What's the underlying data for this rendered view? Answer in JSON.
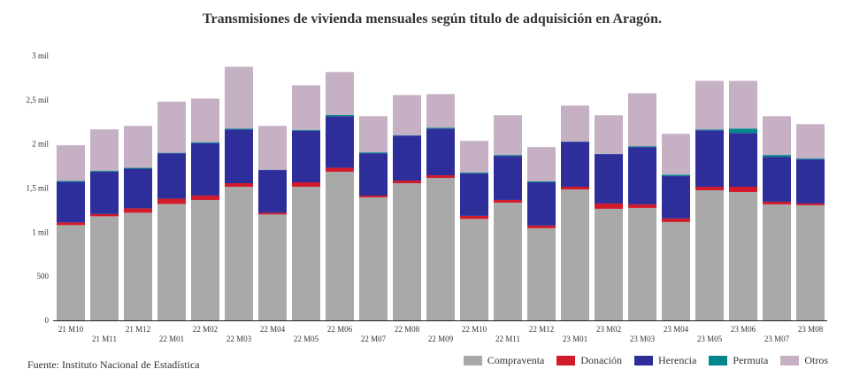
{
  "chart_data": {
    "type": "bar",
    "stacked": true,
    "title": "Transmisiones de vivienda mensuales según titulo de adquisición en Aragón.",
    "source": "Fuente: Instituto Nacional de Estadística",
    "xlabel": "",
    "ylabel": "",
    "ylim": [
      0,
      3000
    ],
    "yticks": [
      {
        "value": 0,
        "label": "0"
      },
      {
        "value": 500,
        "label": "500"
      },
      {
        "value": 1000,
        "label": "1 mil"
      },
      {
        "value": 1500,
        "label": "1,5 mil"
      },
      {
        "value": 2000,
        "label": "2 mil"
      },
      {
        "value": 2500,
        "label": "2,5 mil"
      },
      {
        "value": 3000,
        "label": "3 mil"
      }
    ],
    "grid": false,
    "legend_position": "bottom-right",
    "categories": [
      "21 M10",
      "21 M11",
      "21 M12",
      "22 M01",
      "22 M02",
      "22 M03",
      "22 M04",
      "22 M05",
      "22 M06",
      "22 M07",
      "22 M08",
      "22 M09",
      "22 M10",
      "22 M11",
      "22 M12",
      "23 M01",
      "23 M02",
      "23 M03",
      "23 M04",
      "23 M05",
      "23 M06",
      "23 M07",
      "23 M08"
    ],
    "series": [
      {
        "name": "Compraventa",
        "color": "#a9a9a9",
        "values": [
          1080,
          1180,
          1220,
          1320,
          1365,
          1515,
          1200,
          1515,
          1685,
          1395,
          1555,
          1615,
          1150,
          1335,
          1045,
          1485,
          1265,
          1275,
          1115,
          1475,
          1455,
          1315,
          1305
        ]
      },
      {
        "name": "Donación",
        "color": "#d11a2a",
        "values": [
          30,
          25,
          50,
          60,
          50,
          40,
          20,
          50,
          45,
          20,
          30,
          30,
          35,
          30,
          30,
          30,
          60,
          40,
          40,
          40,
          60,
          30,
          20
        ]
      },
      {
        "name": "Herencia",
        "color": "#2e2e9b",
        "values": [
          460,
          480,
          450,
          515,
          595,
          610,
          485,
          585,
          585,
          480,
          510,
          530,
          480,
          500,
          490,
          510,
          560,
          650,
          480,
          640,
          610,
          510,
          500
        ]
      },
      {
        "name": "Permuta",
        "color": "#00868b",
        "values": [
          10,
          10,
          10,
          5,
          10,
          10,
          3,
          10,
          15,
          10,
          5,
          10,
          10,
          10,
          10,
          3,
          3,
          10,
          15,
          10,
          50,
          20,
          10
        ]
      },
      {
        "name": "Otros",
        "color": "#c6b0c4",
        "values": [
          405,
          470,
          475,
          580,
          495,
          700,
          497,
          505,
          485,
          410,
          455,
          380,
          360,
          450,
          390,
          407,
          437,
          600,
          465,
          550,
          540,
          440,
          390
        ]
      }
    ]
  }
}
